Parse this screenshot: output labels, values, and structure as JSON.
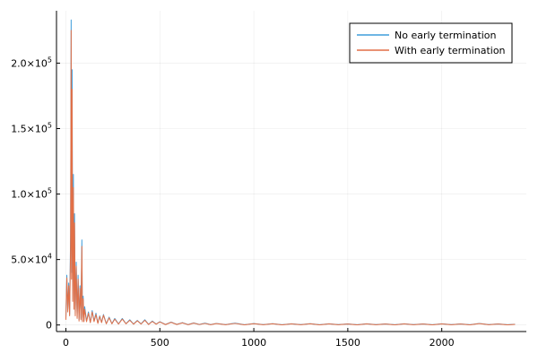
{
  "chart_data": {
    "type": "line",
    "title": "",
    "xlabel": "",
    "ylabel": "",
    "xlim": [
      -50,
      2450
    ],
    "ylim": [
      -5000,
      240000
    ],
    "x_ticks": [
      0,
      500,
      1000,
      1500,
      2000
    ],
    "y_ticks": [
      {
        "value": 0,
        "mantissa": "0",
        "exponent": ""
      },
      {
        "value": 50000,
        "mantissa": "5.0×10",
        "exponent": "4"
      },
      {
        "value": 100000,
        "mantissa": "1.0×10",
        "exponent": "5"
      },
      {
        "value": 150000,
        "mantissa": "1.5×10",
        "exponent": "5"
      },
      {
        "value": 200000,
        "mantissa": "2.0×10",
        "exponent": "5"
      }
    ],
    "grid": true,
    "legend_position": "top-right",
    "series": [
      {
        "name": "No early termination",
        "color": "#3e9ddb",
        "points": [
          [
            0,
            5000
          ],
          [
            5,
            38000
          ],
          [
            10,
            12000
          ],
          [
            15,
            32000
          ],
          [
            20,
            8000
          ],
          [
            25,
            70000
          ],
          [
            28,
            233000
          ],
          [
            30,
            40000
          ],
          [
            33,
            195000
          ],
          [
            36,
            20000
          ],
          [
            40,
            115000
          ],
          [
            43,
            15000
          ],
          [
            46,
            85000
          ],
          [
            50,
            8000
          ],
          [
            55,
            48000
          ],
          [
            60,
            6000
          ],
          [
            65,
            38000
          ],
          [
            70,
            4000
          ],
          [
            75,
            30000
          ],
          [
            80,
            5000
          ],
          [
            85,
            65000
          ],
          [
            88,
            3000
          ],
          [
            92,
            22000
          ],
          [
            96,
            3000
          ],
          [
            100,
            14000
          ],
          [
            110,
            3000
          ],
          [
            120,
            10000
          ],
          [
            130,
            2000
          ],
          [
            140,
            11000
          ],
          [
            150,
            3000
          ],
          [
            160,
            9000
          ],
          [
            170,
            1500
          ],
          [
            180,
            7000
          ],
          [
            190,
            2000
          ],
          [
            200,
            8000
          ],
          [
            215,
            1000
          ],
          [
            230,
            6000
          ],
          [
            245,
            1000
          ],
          [
            260,
            5000
          ],
          [
            280,
            800
          ],
          [
            300,
            5000
          ],
          [
            320,
            1000
          ],
          [
            340,
            4000
          ],
          [
            360,
            700
          ],
          [
            380,
            3500
          ],
          [
            400,
            800
          ],
          [
            420,
            4000
          ],
          [
            440,
            500
          ],
          [
            460,
            3000
          ],
          [
            480,
            700
          ],
          [
            500,
            2500
          ],
          [
            530,
            400
          ],
          [
            560,
            2200
          ],
          [
            590,
            500
          ],
          [
            620,
            1800
          ],
          [
            650,
            300
          ],
          [
            680,
            1600
          ],
          [
            710,
            400
          ],
          [
            740,
            1400
          ],
          [
            770,
            300
          ],
          [
            800,
            1200
          ],
          [
            850,
            300
          ],
          [
            900,
            1400
          ],
          [
            950,
            200
          ],
          [
            1000,
            1100
          ],
          [
            1050,
            300
          ],
          [
            1100,
            1000
          ],
          [
            1150,
            200
          ],
          [
            1200,
            900
          ],
          [
            1250,
            300
          ],
          [
            1300,
            1000
          ],
          [
            1350,
            200
          ],
          [
            1400,
            900
          ],
          [
            1450,
            300
          ],
          [
            1500,
            800
          ],
          [
            1550,
            200
          ],
          [
            1600,
            900
          ],
          [
            1650,
            300
          ],
          [
            1700,
            800
          ],
          [
            1750,
            200
          ],
          [
            1800,
            900
          ],
          [
            1850,
            300
          ],
          [
            1900,
            800
          ],
          [
            1950,
            200
          ],
          [
            2000,
            900
          ],
          [
            2050,
            300
          ],
          [
            2100,
            800
          ],
          [
            2150,
            200
          ],
          [
            2200,
            1200
          ],
          [
            2250,
            300
          ],
          [
            2300,
            800
          ],
          [
            2350,
            200
          ],
          [
            2390,
            600
          ]
        ]
      },
      {
        "name": "With early termination",
        "color": "#e26f46",
        "points": [
          [
            0,
            4000
          ],
          [
            5,
            36000
          ],
          [
            10,
            10000
          ],
          [
            15,
            30000
          ],
          [
            20,
            7000
          ],
          [
            25,
            60000
          ],
          [
            28,
            225000
          ],
          [
            30,
            35000
          ],
          [
            33,
            180000
          ],
          [
            36,
            18000
          ],
          [
            40,
            105000
          ],
          [
            43,
            12000
          ],
          [
            46,
            78000
          ],
          [
            50,
            7000
          ],
          [
            55,
            45000
          ],
          [
            60,
            5000
          ],
          [
            65,
            35000
          ],
          [
            70,
            3000
          ],
          [
            75,
            28000
          ],
          [
            80,
            4000
          ],
          [
            85,
            60000
          ],
          [
            88,
            2500
          ],
          [
            92,
            20000
          ],
          [
            96,
            2500
          ],
          [
            100,
            12000
          ],
          [
            110,
            2500
          ],
          [
            120,
            9000
          ],
          [
            130,
            1800
          ],
          [
            140,
            10000
          ],
          [
            150,
            2500
          ],
          [
            160,
            8000
          ],
          [
            170,
            1200
          ],
          [
            180,
            6500
          ],
          [
            190,
            1800
          ],
          [
            200,
            7500
          ],
          [
            215,
            900
          ],
          [
            230,
            5500
          ],
          [
            245,
            900
          ],
          [
            260,
            4500
          ],
          [
            280,
            700
          ],
          [
            300,
            4500
          ],
          [
            320,
            900
          ],
          [
            340,
            3600
          ],
          [
            360,
            600
          ],
          [
            380,
            3200
          ],
          [
            400,
            700
          ],
          [
            420,
            3600
          ],
          [
            440,
            400
          ],
          [
            460,
            2700
          ],
          [
            480,
            600
          ],
          [
            500,
            2300
          ],
          [
            530,
            300
          ],
          [
            560,
            2000
          ],
          [
            590,
            400
          ],
          [
            620,
            1600
          ],
          [
            650,
            250
          ],
          [
            680,
            1400
          ],
          [
            710,
            350
          ],
          [
            740,
            1200
          ],
          [
            770,
            250
          ],
          [
            800,
            1100
          ],
          [
            850,
            250
          ],
          [
            900,
            1200
          ],
          [
            950,
            150
          ],
          [
            1000,
            1000
          ],
          [
            1050,
            250
          ],
          [
            1100,
            900
          ],
          [
            1150,
            150
          ],
          [
            1200,
            800
          ],
          [
            1250,
            250
          ],
          [
            1300,
            900
          ],
          [
            1350,
            150
          ],
          [
            1400,
            800
          ],
          [
            1450,
            250
          ],
          [
            1500,
            700
          ],
          [
            1550,
            150
          ],
          [
            1600,
            800
          ],
          [
            1650,
            250
          ],
          [
            1700,
            700
          ],
          [
            1750,
            150
          ],
          [
            1800,
            800
          ],
          [
            1850,
            250
          ],
          [
            1900,
            700
          ],
          [
            1950,
            150
          ],
          [
            2000,
            800
          ],
          [
            2050,
            250
          ],
          [
            2100,
            700
          ],
          [
            2150,
            150
          ],
          [
            2200,
            1100
          ],
          [
            2250,
            250
          ],
          [
            2300,
            700
          ],
          [
            2350,
            150
          ],
          [
            2390,
            500
          ]
        ]
      }
    ]
  }
}
